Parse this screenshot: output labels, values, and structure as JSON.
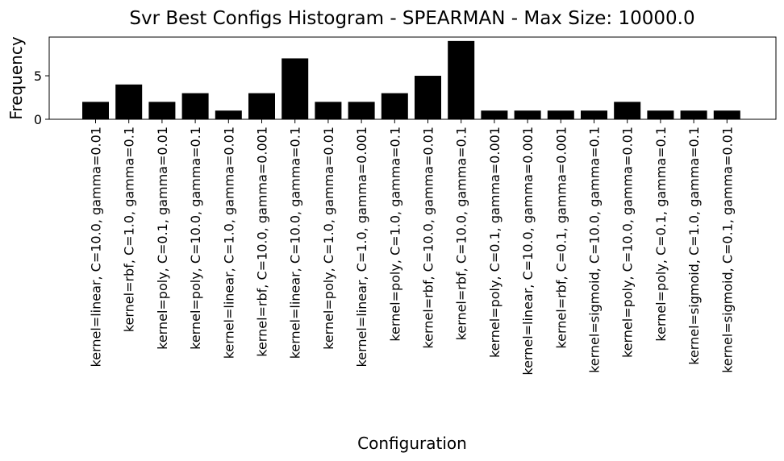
{
  "chart_data": {
    "type": "bar",
    "title": "Svr Best Configs Histogram - SPEARMAN - Max Size: 10000.0",
    "xlabel": "Configuration",
    "ylabel": "Frequency",
    "ylim": [
      0,
      9.45
    ],
    "yticks": [
      0,
      5
    ],
    "grid": false,
    "legend": "none",
    "bar_color": "#000000",
    "categories": [
      "kernel=linear, C=10.0, gamma=0.01",
      "kernel=rbf, C=1.0, gamma=0.1",
      "kernel=poly, C=0.1, gamma=0.01",
      "kernel=poly, C=10.0, gamma=0.1",
      "kernel=linear, C=1.0, gamma=0.01",
      "kernel=rbf, C=10.0, gamma=0.001",
      "kernel=linear, C=10.0, gamma=0.1",
      "kernel=poly, C=1.0, gamma=0.01",
      "kernel=linear, C=1.0, gamma=0.001",
      "kernel=poly, C=1.0, gamma=0.1",
      "kernel=rbf, C=10.0, gamma=0.01",
      "kernel=rbf, C=10.0, gamma=0.1",
      "kernel=poly, C=0.1, gamma=0.001",
      "kernel=linear, C=10.0, gamma=0.001",
      "kernel=rbf, C=0.1, gamma=0.001",
      "kernel=sigmoid, C=10.0, gamma=0.1",
      "kernel=poly, C=10.0, gamma=0.01",
      "kernel=poly, C=0.1, gamma=0.1",
      "kernel=sigmoid, C=1.0, gamma=0.1",
      "kernel=sigmoid, C=0.1, gamma=0.01"
    ],
    "values": [
      2,
      4,
      2,
      3,
      1,
      3,
      7,
      2,
      2,
      3,
      5,
      9,
      1,
      1,
      1,
      1,
      2,
      1,
      1,
      1
    ]
  }
}
